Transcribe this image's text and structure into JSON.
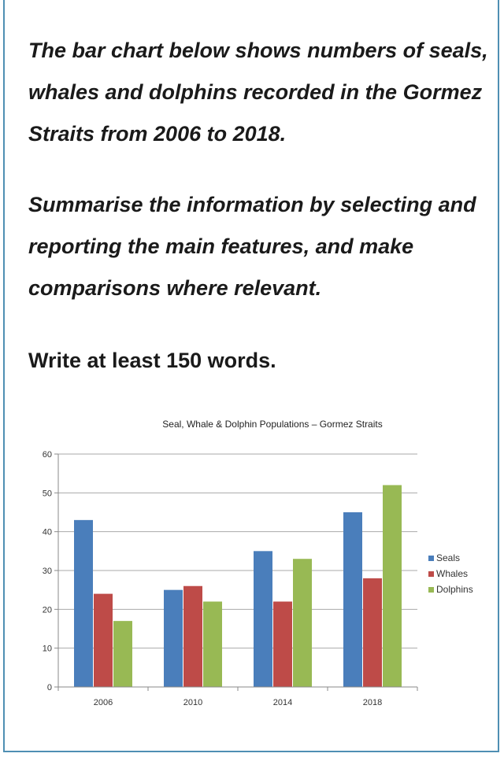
{
  "prompt": {
    "paragraph1": "The bar chart below shows numbers of seals, whales and dolphins recorded in the Gormez Straits from 2006 to 2018.",
    "paragraph2": "Summarise the information by selecting and reporting the main features, and make comparisons where relevant.",
    "paragraph3": "Write at least 150 words."
  },
  "chart_data": {
    "type": "bar",
    "title": "Seal, Whale & Dolphin Populations – Gormez Straits",
    "categories": [
      "2006",
      "2010",
      "2014",
      "2018"
    ],
    "series": [
      {
        "name": "Seals",
        "color": "#4a7ebb",
        "values": [
          43,
          25,
          35,
          45
        ]
      },
      {
        "name": "Whales",
        "color": "#be4b48",
        "values": [
          24,
          26,
          22,
          28
        ]
      },
      {
        "name": "Dolphins",
        "color": "#98b954",
        "values": [
          17,
          22,
          33,
          52
        ]
      }
    ],
    "ylim": [
      0,
      60
    ],
    "yticks": [
      0,
      10,
      20,
      30,
      40,
      50,
      60
    ],
    "grid": true,
    "legend_position": "right",
    "xlabel": "",
    "ylabel": ""
  }
}
